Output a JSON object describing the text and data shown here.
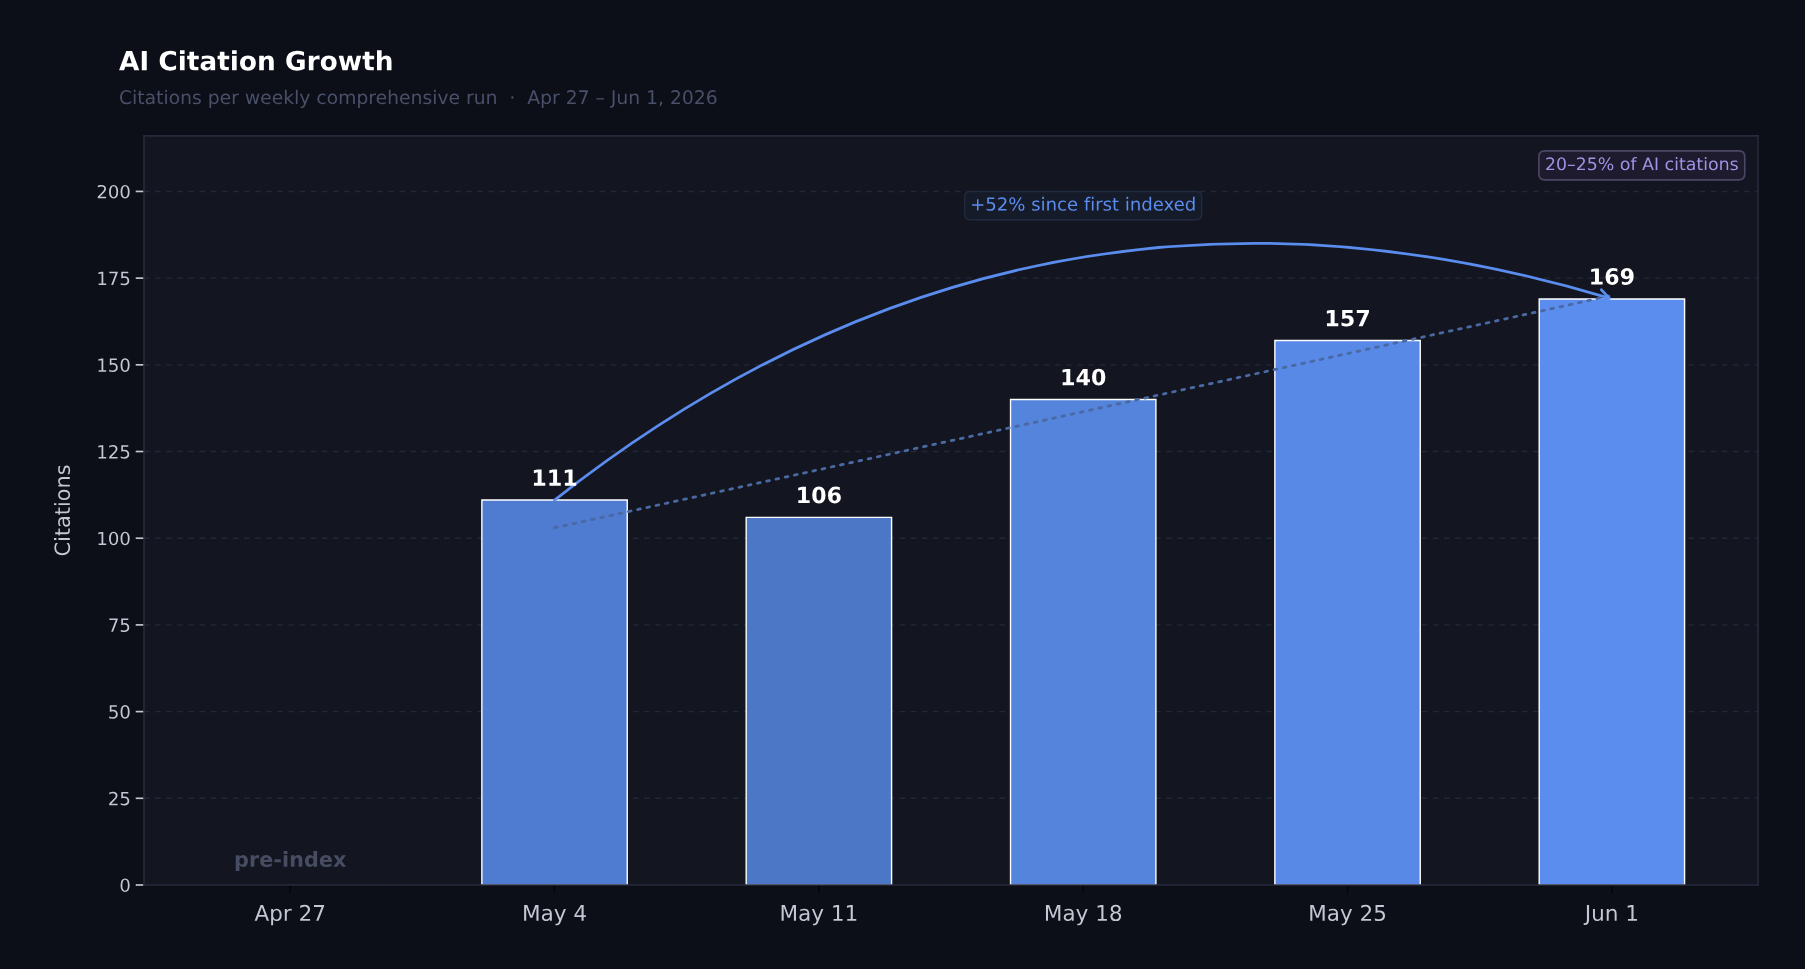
{
  "chart_data": {
    "type": "bar",
    "title": "AI Citation Growth",
    "subtitle": "Citations per weekly comprehensive run  ·  Apr 27 – Jun 1, 2026",
    "ylabel": "Citations",
    "categories": [
      "Apr 27",
      "May 4",
      "May 11",
      "May 18",
      "May 25",
      "Jun 1"
    ],
    "series": [
      {
        "colors": [
          null,
          "#4f7bd0",
          "#4c76c6",
          "#5484dc",
          "#5889e6",
          "#5b8def"
        ],
        "values": [
          null,
          111,
          106,
          140,
          157,
          169
        ],
        "value_labels": [
          null,
          "111",
          "106",
          "140",
          "157",
          "169"
        ]
      },
      {
        "type": "line",
        "x": [
          "May 4",
          "Jun 1"
        ],
        "values": [
          103,
          170
        ],
        "color": "#4a69a3",
        "line_style": "dotted"
      }
    ],
    "ylim": [
      0,
      216
    ],
    "yticks": [
      0,
      25,
      50,
      75,
      100,
      125,
      150,
      175,
      200
    ],
    "grid": "y",
    "annotations": [
      "+52% since first indexed",
      "20–25% of AI citations",
      "pre-index"
    ]
  }
}
